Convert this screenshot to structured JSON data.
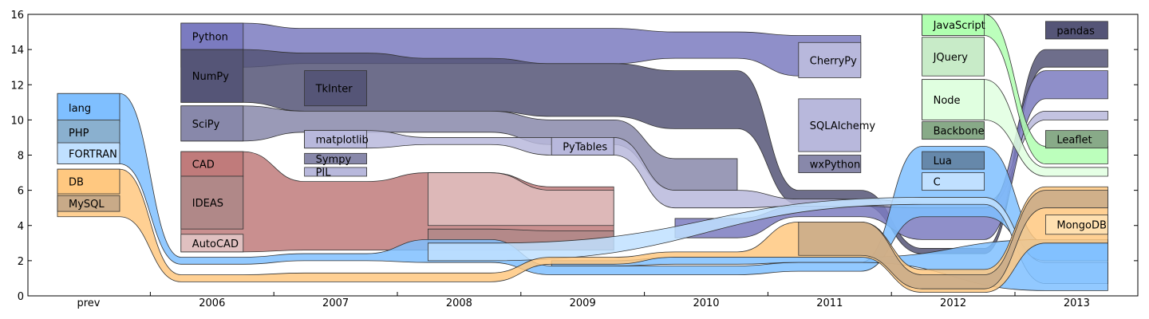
{
  "colors": {
    "python": "#7b7bc0",
    "python_dark": "#555577",
    "python_mid": "#8888aa",
    "python_light": "#b8b8dc",
    "blue": "#7fbfff",
    "blue_mid": "#8ab0cf",
    "blue_light": "#c0e0ff",
    "orange": "#ffc880",
    "tan": "#c8aa88",
    "red": "#c07b7b",
    "red_mid": "#b08888",
    "pink": "#e0c0c0",
    "green": "#b0ffb0",
    "green_mid": "#c8ebc8",
    "green_light": "#e0ffe0",
    "green_dark": "#88aa88",
    "steel": "#6688aa",
    "peach": "#ffe0b0"
  },
  "chart_data": {
    "type": "area",
    "title": "",
    "xlabel": "",
    "ylabel": "",
    "categories": [
      "prev",
      "2006",
      "2007",
      "2008",
      "2009",
      "2010",
      "2011",
      "2012",
      "2013"
    ],
    "ylim": [
      0,
      16
    ],
    "yticks": [
      0,
      2,
      4,
      6,
      8,
      10,
      12,
      14,
      16
    ],
    "grid": false,
    "nodes": [
      {
        "label": "lang",
        "column": "prev",
        "y": [
          9.9,
          11.5
        ],
        "color": "blue"
      },
      {
        "label": "PHP",
        "column": "prev",
        "y": [
          8.6,
          10.0
        ],
        "color": "blue_mid"
      },
      {
        "label": "FORTRAN",
        "column": "prev",
        "y": [
          7.5,
          8.7
        ],
        "color": "blue_light"
      },
      {
        "label": "DB",
        "column": "prev",
        "y": [
          5.8,
          7.2
        ],
        "color": "orange"
      },
      {
        "label": "MySQL",
        "column": "prev",
        "y": [
          4.8,
          5.7
        ],
        "color": "tan"
      },
      {
        "label": "Python",
        "column": "2006",
        "y": [
          14.0,
          15.5
        ],
        "color": "python"
      },
      {
        "label": "NumPy",
        "column": "2006",
        "y": [
          11.0,
          14.0
        ],
        "color": "python_dark"
      },
      {
        "label": "SciPy",
        "column": "2006",
        "y": [
          8.8,
          10.8
        ],
        "color": "python_mid"
      },
      {
        "label": "CAD",
        "column": "2006",
        "y": [
          6.8,
          8.2
        ],
        "color": "red"
      },
      {
        "label": "IDEAS",
        "column": "2006",
        "y": [
          3.8,
          6.8
        ],
        "color": "red_mid"
      },
      {
        "label": "AutoCAD",
        "column": "2006",
        "y": [
          2.5,
          3.5
        ],
        "color": "pink"
      },
      {
        "label": "TkInter",
        "column": "2007",
        "y": [
          10.8,
          12.8
        ],
        "color": "python_dark"
      },
      {
        "label": "matplotlib",
        "column": "2007",
        "y": [
          8.4,
          9.4
        ],
        "color": "python_light"
      },
      {
        "label": "Sympy",
        "column": "2007",
        "y": [
          7.5,
          8.1
        ],
        "color": "python_mid"
      },
      {
        "label": "PIL",
        "column": "2007",
        "y": [
          6.8,
          7.3
        ],
        "color": "python_light"
      },
      {
        "label": "PyTables",
        "column": "2009",
        "y": [
          8.0,
          9.0
        ],
        "color": "python_light"
      },
      {
        "label": "CherryPy",
        "column": "2011",
        "y": [
          12.4,
          14.4
        ],
        "color": "python_light"
      },
      {
        "label": "SQLAlchemy",
        "column": "2011",
        "y": [
          8.2,
          11.2
        ],
        "color": "python_light"
      },
      {
        "label": "wxPython",
        "column": "2011",
        "y": [
          7.0,
          8.0
        ],
        "color": "python_mid"
      },
      {
        "label": "JavaScript",
        "column": "2012",
        "y": [
          14.8,
          16.0
        ],
        "color": "green"
      },
      {
        "label": "JQuery",
        "column": "2012",
        "y": [
          12.5,
          14.7
        ],
        "color": "green_mid"
      },
      {
        "label": "Node",
        "column": "2012",
        "y": [
          10.0,
          12.3
        ],
        "color": "green_light"
      },
      {
        "label": "Backbone",
        "column": "2012",
        "y": [
          8.9,
          9.9
        ],
        "color": "green_dark"
      },
      {
        "label": "Lua",
        "column": "2012",
        "y": [
          7.2,
          8.2
        ],
        "color": "steel"
      },
      {
        "label": "C",
        "column": "2012",
        "y": [
          6.0,
          7.0
        ],
        "color": "blue_light"
      },
      {
        "label": "pandas",
        "column": "2013",
        "y": [
          14.6,
          15.6
        ],
        "color": "python_dark"
      },
      {
        "label": "Leaflet",
        "column": "2013",
        "y": [
          8.4,
          9.4
        ],
        "color": "green_dark"
      },
      {
        "label": "MongoDB",
        "column": "2013",
        "y": [
          3.5,
          4.6
        ],
        "color": "peach"
      }
    ],
    "flows": [
      {
        "color": "python",
        "points": [
          [
            "2006",
            13.0,
            15.5
          ],
          [
            "2007",
            13.2,
            15.2
          ],
          [
            "2008",
            13.2,
            15.2
          ],
          [
            "2009",
            13.2,
            15.2
          ],
          [
            "2010",
            13.5,
            15.0
          ],
          [
            "2011",
            12.5,
            14.8
          ]
        ]
      },
      {
        "color": "python_dark",
        "points": [
          [
            "2006",
            11.0,
            14.0
          ],
          [
            "2007",
            10.5,
            13.8
          ],
          [
            "2008",
            10.5,
            13.5
          ],
          [
            "2009",
            10.2,
            13.2
          ],
          [
            "2010",
            9.5,
            12.8
          ],
          [
            "2011",
            5.2,
            6.0
          ],
          [
            "2012",
            2.4,
            2.7
          ],
          [
            "2013",
            13.0,
            14.0
          ]
        ]
      },
      {
        "color": "python_mid",
        "points": [
          [
            "2006",
            8.8,
            10.8
          ],
          [
            "2007",
            9.3,
            10.5
          ],
          [
            "2008",
            9.3,
            10.5
          ],
          [
            "2009",
            8.6,
            10.0
          ],
          [
            "2010",
            6.0,
            7.8
          ]
        ]
      },
      {
        "color": "python_light",
        "points": [
          [
            "2007",
            8.4,
            9.4
          ],
          [
            "2008",
            8.6,
            9.0
          ],
          [
            "2009",
            8.0,
            9.0
          ],
          [
            "2010",
            5.0,
            6.0
          ],
          [
            "2011",
            5.1,
            5.5
          ],
          [
            "2012",
            5.0,
            5.3
          ],
          [
            "2013",
            10.0,
            10.5
          ]
        ]
      },
      {
        "color": "python",
        "points": [
          [
            "2010",
            3.3,
            4.4
          ],
          [
            "2011",
            4.5,
            5.1
          ],
          [
            "2012",
            3.2,
            5.0
          ],
          [
            "2013",
            11.2,
            12.8
          ]
        ]
      },
      {
        "color": "red",
        "points": [
          [
            "2006",
            2.5,
            8.2
          ],
          [
            "2007",
            2.6,
            6.5
          ],
          [
            "2008",
            2.6,
            7.0
          ],
          [
            "2009",
            2.6,
            6.2
          ]
        ]
      },
      {
        "color": "red_mid",
        "points": [
          [
            "2008",
            2.6,
            3.8
          ],
          [
            "2009",
            2.6,
            3.7
          ]
        ]
      },
      {
        "color": "pink",
        "points": [
          [
            "2008",
            4.0,
            7.0
          ],
          [
            "2009",
            4.0,
            6.0
          ]
        ]
      },
      {
        "color": "blue",
        "points": [
          [
            "prev",
            7.5,
            11.5
          ],
          [
            "2006",
            1.8,
            2.2
          ],
          [
            "2007",
            2.0,
            2.4
          ],
          [
            "2008",
            1.9,
            3.2
          ],
          [
            "2009",
            1.2,
            1.7
          ],
          [
            "2010",
            1.2,
            1.7
          ],
          [
            "2011",
            1.4,
            1.9
          ],
          [
            "2012",
            4.5,
            8.5
          ],
          [
            "2013",
            2.0,
            3.0
          ]
        ]
      },
      {
        "color": "blue_light",
        "points": [
          [
            "2008",
            2.0,
            3.0
          ],
          [
            "2012",
            5.2,
            5.6
          ],
          [
            "2013",
            0.7,
            1.9
          ]
        ]
      },
      {
        "color": "blue",
        "points": [
          [
            "2009",
            1.7,
            2.0
          ],
          [
            "2010",
            1.8,
            2.2
          ],
          [
            "2011",
            1.9,
            2.2
          ],
          [
            "2013",
            0.3,
            3.2
          ]
        ]
      },
      {
        "color": "orange",
        "points": [
          [
            "prev",
            4.5,
            7.2
          ],
          [
            "2006",
            0.8,
            1.2
          ],
          [
            "2007",
            0.8,
            1.3
          ],
          [
            "2008",
            0.8,
            1.3
          ],
          [
            "2009",
            1.8,
            2.2
          ],
          [
            "2010",
            2.2,
            2.5
          ],
          [
            "2011",
            2.2,
            4.2
          ],
          [
            "2012",
            0.2,
            1.5
          ],
          [
            "2013",
            3.0,
            6.2
          ]
        ]
      },
      {
        "color": "tan",
        "points": [
          [
            "2011",
            2.3,
            4.2
          ],
          [
            "2012",
            0.4,
            1.2
          ],
          [
            "2013",
            5.0,
            6.0
          ]
        ]
      },
      {
        "color": "green_light",
        "points": [
          [
            "2012",
            10.0,
            12.3
          ],
          [
            "2013",
            6.8,
            7.3
          ]
        ]
      },
      {
        "color": "green",
        "points": [
          [
            "2012",
            14.8,
            16.0
          ],
          [
            "2013",
            7.5,
            8.5
          ]
        ]
      }
    ]
  }
}
